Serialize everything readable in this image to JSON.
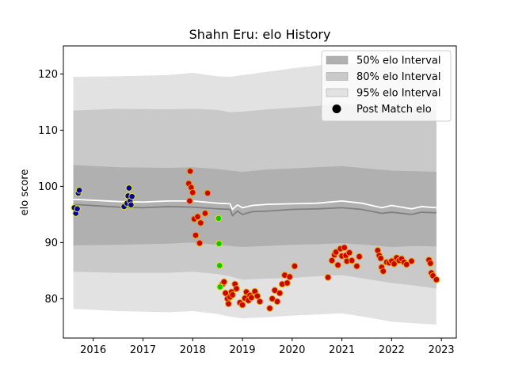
{
  "chart_data": {
    "type": "scatter",
    "title": "Shahn Eru: elo History",
    "xlabel": "",
    "ylabel": "elo score",
    "xlim": [
      2015.4,
      2023.3
    ],
    "ylim": [
      73,
      125
    ],
    "x_ticks": [
      2016,
      2017,
      2018,
      2019,
      2020,
      2021,
      2022,
      2023
    ],
    "y_ticks": [
      80,
      90,
      100,
      110,
      120
    ],
    "grid": false,
    "legend_position": "top-right",
    "legend": [
      {
        "label": "50% elo Interval",
        "kind": "band",
        "color": "#b0b0b0"
      },
      {
        "label": "80% elo Interval",
        "kind": "band",
        "color": "#c9c9c9"
      },
      {
        "label": "95% elo Interval",
        "kind": "band",
        "color": "#e2e2e2"
      },
      {
        "label": "Post Match elo",
        "kind": "marker",
        "color": "#000000"
      }
    ],
    "colors": {
      "band50": "#b0b0b0",
      "band80": "#c9c9c9",
      "band95": "#e2e2e2",
      "mean_line": "#808080",
      "white_line": "#ffffff",
      "marker_fill_red": "#cc0000",
      "marker_edge_red": "#e8a000",
      "marker_fill_blue": "#0000aa",
      "marker_edge_blue": "#e6e600",
      "marker_fill_green": "#00cc00",
      "marker_edge_green": "#e6e600"
    },
    "mean_line": [
      [
        2015.6,
        96.8
      ],
      [
        2016.5,
        96.3
      ],
      [
        2017.0,
        96.2
      ],
      [
        2017.5,
        96.4
      ],
      [
        2018.0,
        96.3
      ],
      [
        2018.5,
        96.0
      ],
      [
        2018.75,
        95.9
      ],
      [
        2018.8,
        94.8
      ],
      [
        2018.9,
        95.6
      ],
      [
        2019.0,
        95.0
      ],
      [
        2019.2,
        95.5
      ],
      [
        2019.5,
        95.6
      ],
      [
        2020.0,
        95.9
      ],
      [
        2020.5,
        96.0
      ],
      [
        2021.0,
        96.2
      ],
      [
        2021.4,
        95.9
      ],
      [
        2021.8,
        95.2
      ],
      [
        2022.0,
        95.4
      ],
      [
        2022.4,
        95.0
      ],
      [
        2022.6,
        95.4
      ],
      [
        2022.9,
        95.3
      ]
    ],
    "white_line": [
      [
        2015.6,
        97.7
      ],
      [
        2016.5,
        97.3
      ],
      [
        2017.0,
        97.2
      ],
      [
        2017.5,
        97.4
      ],
      [
        2018.0,
        97.4
      ],
      [
        2018.5,
        97.0
      ],
      [
        2018.75,
        96.9
      ],
      [
        2018.8,
        95.9
      ],
      [
        2018.9,
        96.7
      ],
      [
        2019.0,
        96.2
      ],
      [
        2019.2,
        96.6
      ],
      [
        2019.5,
        96.8
      ],
      [
        2020.0,
        96.9
      ],
      [
        2020.5,
        97.0
      ],
      [
        2021.0,
        97.4
      ],
      [
        2021.4,
        97.0
      ],
      [
        2021.8,
        96.2
      ],
      [
        2022.0,
        96.6
      ],
      [
        2022.4,
        96.0
      ],
      [
        2022.6,
        96.4
      ],
      [
        2022.9,
        96.2
      ]
    ],
    "band50": {
      "x": [
        2015.6,
        2016.5,
        2017.5,
        2018.0,
        2018.5,
        2018.75,
        2019.0,
        2019.5,
        2020.0,
        2020.5,
        2021.0,
        2021.5,
        2022.0,
        2022.5,
        2022.9
      ],
      "low": [
        89.5,
        89.6,
        89.8,
        90.0,
        89.6,
        89.4,
        89.2,
        89.4,
        89.6,
        89.7,
        89.9,
        89.6,
        89.2,
        89.4,
        89.3
      ],
      "high": [
        103.8,
        103.4,
        103.3,
        103.4,
        103.1,
        102.8,
        102.6,
        103.0,
        103.2,
        103.4,
        103.6,
        103.2,
        102.8,
        102.7,
        102.6
      ]
    },
    "band80": {
      "x": [
        2015.6,
        2016.5,
        2017.5,
        2018.0,
        2018.5,
        2018.75,
        2019.0,
        2019.5,
        2020.0,
        2020.5,
        2021.0,
        2021.5,
        2022.0,
        2022.5,
        2022.9
      ],
      "low": [
        84.8,
        84.6,
        84.6,
        84.8,
        84.4,
        84.0,
        83.4,
        83.6,
        83.7,
        84.0,
        84.2,
        83.5,
        82.8,
        82.3,
        81.8
      ],
      "high": [
        113.5,
        113.8,
        113.7,
        113.8,
        113.6,
        113.2,
        113.3,
        113.7,
        114.0,
        114.3,
        114.7,
        114.5,
        114.0,
        113.7,
        113.5
      ]
    },
    "band95": {
      "x": [
        2015.6,
        2016.5,
        2017.5,
        2018.0,
        2018.5,
        2018.75,
        2019.0,
        2019.5,
        2020.0,
        2020.5,
        2021.0,
        2021.5,
        2022.0,
        2022.5,
        2022.9
      ],
      "low": [
        78.2,
        77.8,
        77.6,
        77.8,
        77.3,
        76.8,
        76.5,
        76.7,
        77.0,
        77.2,
        77.4,
        76.7,
        75.9,
        75.6,
        75.4
      ],
      "high": [
        119.5,
        119.6,
        119.8,
        120.2,
        119.6,
        119.5,
        119.8,
        120.4,
        121.0,
        121.5,
        122.0,
        122.0,
        121.6,
        121.3,
        121.0
      ]
    },
    "series": [
      {
        "color": "blue",
        "points": [
          [
            2015.62,
            96.2
          ],
          [
            2015.65,
            95.2
          ],
          [
            2015.68,
            96.0
          ],
          [
            2015.7,
            98.8
          ],
          [
            2015.72,
            99.3
          ],
          [
            2016.62,
            96.4
          ],
          [
            2016.68,
            97.0
          ],
          [
            2016.7,
            98.3
          ],
          [
            2016.72,
            99.7
          ],
          [
            2016.74,
            97.4
          ],
          [
            2016.76,
            96.7
          ],
          [
            2016.78,
            98.2
          ]
        ]
      },
      {
        "color": "red",
        "points": [
          [
            2017.92,
            100.5
          ],
          [
            2017.94,
            97.4
          ],
          [
            2017.95,
            102.7
          ],
          [
            2017.97,
            99.8
          ],
          [
            2018.0,
            98.9
          ],
          [
            2018.03,
            94.2
          ],
          [
            2018.06,
            91.3
          ],
          [
            2018.1,
            94.6
          ],
          [
            2018.14,
            89.9
          ],
          [
            2018.16,
            93.5
          ],
          [
            2018.25,
            95.2
          ],
          [
            2018.3,
            98.8
          ],
          [
            2018.6,
            82.6
          ],
          [
            2018.63,
            83.0
          ],
          [
            2018.66,
            81.0
          ],
          [
            2018.7,
            80.0
          ],
          [
            2018.72,
            79.1
          ],
          [
            2018.75,
            80.3
          ],
          [
            2018.78,
            81.2
          ],
          [
            2018.8,
            80.7
          ],
          [
            2018.85,
            82.6
          ],
          [
            2018.88,
            81.8
          ],
          [
            2018.95,
            79.3
          ],
          [
            2019.0,
            78.9
          ],
          [
            2019.05,
            80.1
          ],
          [
            2019.08,
            81.2
          ],
          [
            2019.12,
            79.7
          ],
          [
            2019.15,
            80.6
          ],
          [
            2019.18,
            80.2
          ],
          [
            2019.25,
            81.3
          ],
          [
            2019.3,
            80.5
          ],
          [
            2019.35,
            79.5
          ],
          [
            2019.55,
            78.3
          ],
          [
            2019.6,
            80.0
          ],
          [
            2019.65,
            81.5
          ],
          [
            2019.7,
            79.5
          ],
          [
            2019.75,
            81.0
          ],
          [
            2019.8,
            82.6
          ],
          [
            2019.85,
            84.2
          ],
          [
            2019.9,
            82.8
          ],
          [
            2019.95,
            83.9
          ],
          [
            2020.05,
            85.8
          ],
          [
            2020.72,
            83.8
          ],
          [
            2020.8,
            86.8
          ],
          [
            2020.85,
            87.8
          ],
          [
            2020.88,
            88.3
          ],
          [
            2020.92,
            86.0
          ],
          [
            2020.97,
            88.9
          ],
          [
            2021.0,
            87.6
          ],
          [
            2021.05,
            89.1
          ],
          [
            2021.08,
            87.7
          ],
          [
            2021.1,
            86.7
          ],
          [
            2021.15,
            88.2
          ],
          [
            2021.2,
            86.8
          ],
          [
            2021.3,
            85.8
          ],
          [
            2021.35,
            87.5
          ],
          [
            2021.72,
            88.6
          ],
          [
            2021.75,
            87.7
          ],
          [
            2021.78,
            87.2
          ],
          [
            2021.8,
            85.6
          ],
          [
            2021.83,
            84.9
          ],
          [
            2021.9,
            86.5
          ],
          [
            2021.95,
            86.4
          ],
          [
            2022.0,
            86.7
          ],
          [
            2022.05,
            86.2
          ],
          [
            2022.1,
            87.3
          ],
          [
            2022.15,
            86.8
          ],
          [
            2022.2,
            87.1
          ],
          [
            2022.25,
            86.5
          ],
          [
            2022.3,
            86.1
          ],
          [
            2022.4,
            86.7
          ],
          [
            2022.75,
            86.9
          ],
          [
            2022.78,
            86.3
          ],
          [
            2022.8,
            84.6
          ],
          [
            2022.83,
            84.1
          ],
          [
            2022.9,
            83.4
          ]
        ]
      },
      {
        "color": "green",
        "points": [
          [
            2018.52,
            94.3
          ],
          [
            2018.53,
            89.8
          ],
          [
            2018.54,
            85.9
          ],
          [
            2018.55,
            82.1
          ]
        ]
      }
    ]
  }
}
